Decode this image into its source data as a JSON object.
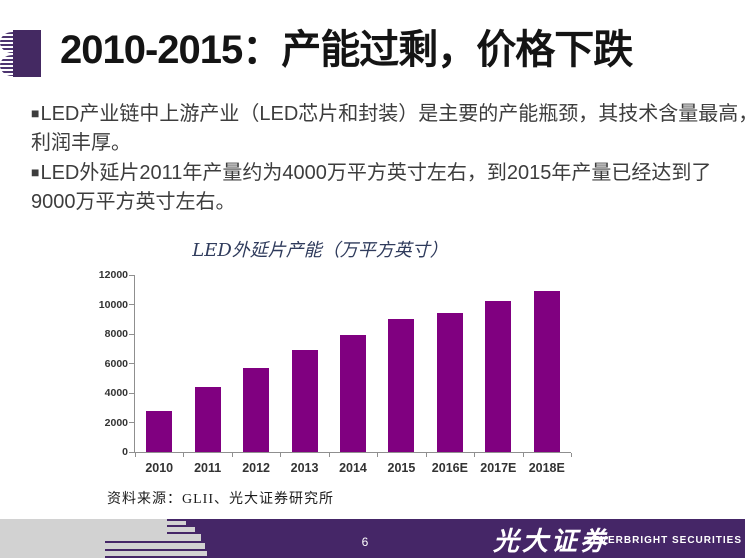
{
  "slide": {
    "title": "2010-2015：产能过剩，价格下跌",
    "bullet_marker": "■",
    "bullets": [
      {
        "lines": [
          "LED产业链中上游产业（LED芯片和封装）是主要的产能瓶颈，其技术含量最高，",
          "利润丰厚。"
        ]
      },
      {
        "lines": [
          "LED外延片2011年产量约为4000万平方英寸左右，到2015年产量已经达到了",
          "9000万平方英寸左右。"
        ]
      }
    ]
  },
  "chart_data": {
    "type": "bar",
    "title": "LED外延片产能（万平方英寸）",
    "categories": [
      "2010",
      "2011",
      "2012",
      "2013",
      "2014",
      "2015",
      "2016E",
      "2017E",
      "2018E"
    ],
    "values": [
      2800,
      4400,
      5700,
      6900,
      7900,
      9000,
      9400,
      10250,
      10900
    ],
    "xlabel": "",
    "ylabel": "",
    "ylim": [
      0,
      12000
    ],
    "yticks": [
      0,
      2000,
      4000,
      6000,
      8000,
      10000,
      12000
    ],
    "grid": false,
    "legend": "none",
    "bar_color": "#800080"
  },
  "source_note": "资料来源：GLII、光大证券研究所",
  "footer": {
    "page_number": "6",
    "brand_cn": "光大证券",
    "brand_en": "EVERBRIGHT SECURITIES"
  },
  "colors": {
    "brand_purple": "#442962",
    "stripe_purple": "#4d3570",
    "footer_purple": "#452667",
    "footer_gray": "#d2d2d2",
    "bar_purple": "#800080"
  }
}
